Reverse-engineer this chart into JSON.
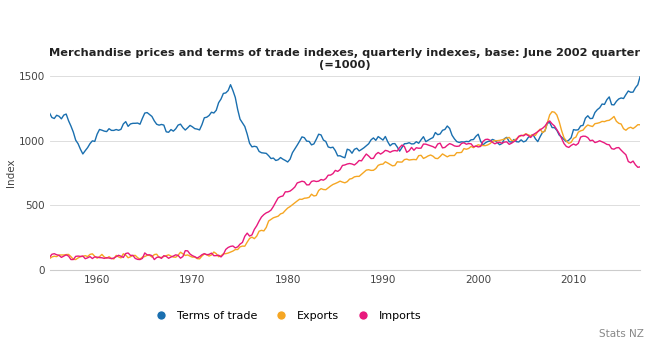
{
  "title_line1": "Merchandise prices and terms of trade indexes, quarterly indexes, base: June 2002 quarter",
  "title_line2": "(=1000)",
  "ylabel": "Index",
  "xlim": [
    1955,
    2017
  ],
  "ylim": [
    0,
    1500
  ],
  "yticks": [
    0,
    500,
    1000,
    1500
  ],
  "xticks": [
    1960,
    1970,
    1980,
    1990,
    2000,
    2010
  ],
  "colors": {
    "terms_of_trade": "#1a6faf",
    "exports": "#f5a623",
    "imports": "#e8197d"
  },
  "legend_labels": [
    "Terms of trade",
    "Exports",
    "Imports"
  ],
  "watermark": "Stats NZ",
  "background": "#ffffff",
  "grid_color": "#d8d8d8"
}
